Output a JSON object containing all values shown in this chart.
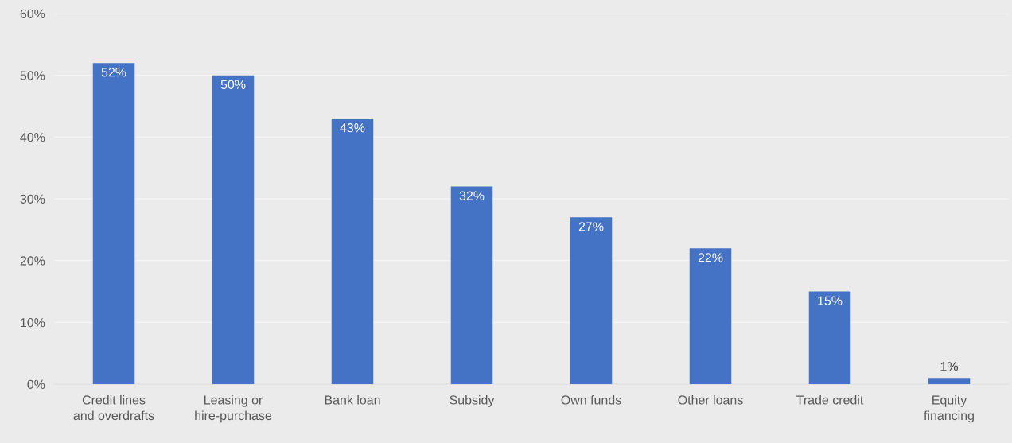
{
  "chart_data": {
    "type": "bar",
    "categories": [
      "Credit lines\nand overdrafts",
      "Leasing or\nhire-purchase",
      "Bank loan",
      "Subsidy",
      "Own funds",
      "Other loans",
      "Trade credit",
      "Equity\nfinancing"
    ],
    "values": [
      52,
      50,
      43,
      32,
      27,
      22,
      15,
      1
    ],
    "value_labels": [
      "52%",
      "50%",
      "43%",
      "32%",
      "27%",
      "22%",
      "15%",
      "1%"
    ],
    "color": "#4472c4",
    "ylim": [
      0,
      60
    ],
    "yticks": [
      {
        "value": 0,
        "label": "0%"
      },
      {
        "value": 10,
        "label": "10%"
      },
      {
        "value": 20,
        "label": "20%"
      },
      {
        "value": 30,
        "label": "30%"
      },
      {
        "value": 40,
        "label": "40%"
      },
      {
        "value": 50,
        "label": "50%"
      },
      {
        "value": 60,
        "label": "60%"
      }
    ],
    "grid": "y",
    "legend": false
  }
}
